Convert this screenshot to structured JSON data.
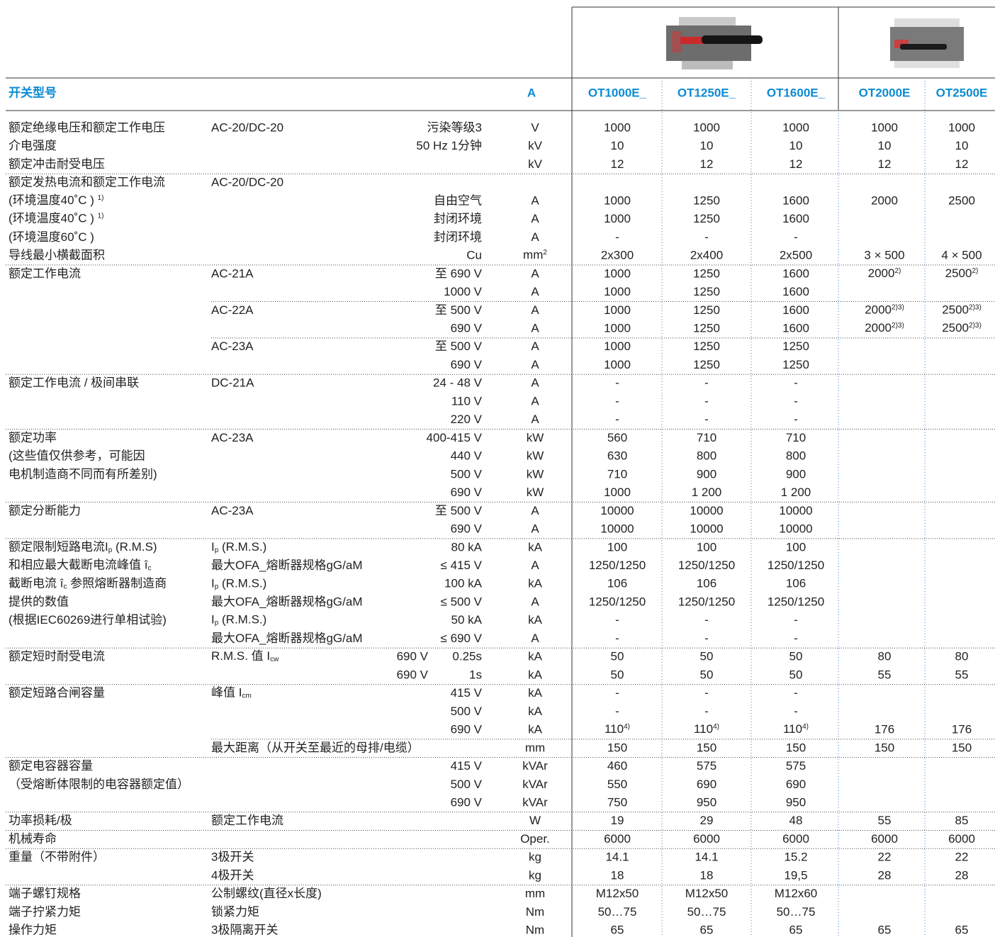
{
  "header": {
    "model_label": "开关型号",
    "unit": "A",
    "models": [
      "OT1000E_",
      "OT1250E_",
      "OT1600E_",
      "OT2000E",
      "OT2500E"
    ]
  },
  "rows": [
    [
      "额定绝缘电压和额定工作电压",
      "AC-20/DC-20",
      "污染等级3",
      "V",
      [
        "1000",
        "1000",
        "1000",
        "1000",
        "1000"
      ]
    ],
    [
      "介电强度",
      null,
      "50 Hz  1分钟",
      "kV",
      [
        "10",
        "10",
        "10",
        "10",
        "10"
      ]
    ],
    [
      "额定冲击耐受电压",
      null,
      null,
      "kV",
      [
        "12",
        "12",
        "12",
        "12",
        "12"
      ]
    ],
    [
      "额定发热电流和额定工作电流",
      "AC-20/DC-20",
      null,
      null,
      null
    ],
    [
      [
        "(环境温度40˚C ) ",
        {
          "sup": "1)"
        }
      ],
      null,
      "自由空气",
      "A",
      [
        "1000",
        "1250",
        "1600",
        "2000",
        "2500"
      ]
    ],
    [
      [
        "(环境温度40˚C ) ",
        {
          "sup": "1)"
        }
      ],
      null,
      "封闭环境",
      "A",
      [
        "1000",
        "1250",
        "1600",
        null,
        null
      ]
    ],
    [
      "(环境温度60˚C )",
      null,
      "封闭环境",
      "A",
      [
        "-",
        "-",
        "-",
        null,
        null
      ]
    ],
    [
      "导线最小横截面积",
      null,
      "Cu",
      [
        "mm",
        {
          "sup": "2"
        }
      ],
      [
        "2x300",
        "2x400",
        "2x500",
        "3 × 500",
        "4 × 500"
      ]
    ],
    [
      "额定工作电流",
      "AC-21A",
      "至 690 V",
      "A",
      [
        "1000",
        "1250",
        "1600",
        [
          "2000",
          {
            "sup": "2)"
          }
        ],
        [
          "2500",
          {
            "sup": "2)"
          }
        ]
      ]
    ],
    [
      null,
      null,
      "1000 V",
      "A",
      [
        "1000",
        "1250",
        "1600",
        null,
        null
      ]
    ],
    [
      null,
      "AC-22A",
      "至 500 V",
      "A",
      [
        "1000",
        "1250",
        "1600",
        [
          "2000",
          {
            "sup": "2)3)"
          }
        ],
        [
          "2500",
          {
            "sup": "2)3)"
          }
        ]
      ]
    ],
    [
      null,
      null,
      "690 V",
      "A",
      [
        "1000",
        "1250",
        "1600",
        [
          "2000",
          {
            "sup": "2)3)"
          }
        ],
        [
          "2500",
          {
            "sup": "2)3)"
          }
        ]
      ]
    ],
    [
      null,
      "AC-23A",
      "至 500 V",
      "A",
      [
        "1000",
        "1250",
        "1250",
        null,
        null
      ]
    ],
    [
      null,
      null,
      "690 V",
      "A",
      [
        "1000",
        "1250",
        "1250",
        null,
        null
      ]
    ],
    [
      "额定工作电流 / 极间串联",
      "DC-21A",
      "24 - 48 V",
      "A",
      [
        "-",
        "-",
        "-",
        null,
        null
      ]
    ],
    [
      null,
      null,
      "110 V",
      "A",
      [
        "-",
        "-",
        "-",
        null,
        null
      ]
    ],
    [
      null,
      null,
      "220 V",
      "A",
      [
        "-",
        "-",
        "-",
        null,
        null
      ]
    ],
    [
      "额定功率",
      "AC-23A",
      "400-415 V",
      "kW",
      [
        "560",
        "710",
        "710",
        null,
        null
      ]
    ],
    [
      "(这些值仅供参考，可能因",
      null,
      "440 V",
      "kW",
      [
        "630",
        "800",
        "800",
        null,
        null
      ]
    ],
    [
      "电机制造商不同而有所差别)",
      null,
      "500 V",
      "kW",
      [
        "710",
        "900",
        "900",
        null,
        null
      ]
    ],
    [
      null,
      null,
      "690 V",
      "kW",
      [
        "1000",
        "1 200",
        "1 200",
        null,
        null
      ]
    ],
    [
      "额定分断能力",
      "AC-23A",
      "至 500 V",
      "A",
      [
        "10000",
        "10000",
        "10000",
        null,
        null
      ]
    ],
    [
      null,
      null,
      "690 V",
      "A",
      [
        "10000",
        "10000",
        "10000",
        null,
        null
      ]
    ],
    [
      [
        "额定限制短路电流I",
        {
          "sub": "p"
        },
        " (R.M.S)"
      ],
      [
        "I",
        {
          "sub": "p"
        },
        " (R.M.S.)"
      ],
      "80 kA",
      "kA",
      [
        "100",
        "100",
        "100",
        null,
        null
      ]
    ],
    [
      [
        "和相应最大截断电流峰值 î",
        {
          "sub": "c"
        }
      ],
      "最大OFA_熔断器规格gG/aM",
      "≤ 415 V",
      "A",
      [
        "1250/1250",
        "1250/1250",
        "1250/1250",
        null,
        null
      ]
    ],
    [
      [
        "截断电流 î",
        {
          "sub": "c"
        },
        " 参照熔断器制造商"
      ],
      [
        "I",
        {
          "sub": "p"
        },
        " (R.M.S.)"
      ],
      "100 kA",
      "kA",
      [
        "106",
        "106",
        "106",
        null,
        null
      ]
    ],
    [
      "提供的数值",
      "最大OFA_熔断器规格gG/aM",
      "≤ 500 V",
      "A",
      [
        "1250/1250",
        "1250/1250",
        "1250/1250",
        null,
        null
      ]
    ],
    [
      "(根据IEC60269进行单相试验)",
      [
        "I",
        {
          "sub": "p"
        },
        " (R.M.S.)"
      ],
      "50 kA",
      "kA",
      [
        "-",
        "-",
        "-",
        null,
        null
      ]
    ],
    [
      null,
      "最大OFA_熔断器规格gG/aM",
      "≤ 690 V",
      "A",
      [
        "-",
        "-",
        "-",
        null,
        null
      ]
    ],
    [
      "额定短时耐受电流",
      [
        "R.M.S. 值   I",
        {
          "sub": "cw"
        }
      ],
      {
        "left": "690 V",
        "right": "0.25s"
      },
      "kA",
      [
        "50",
        "50",
        "50",
        "80",
        "80"
      ]
    ],
    [
      null,
      null,
      {
        "left": "690 V",
        "right": "1s"
      },
      "kA",
      [
        "50",
        "50",
        "50",
        "55",
        "55"
      ]
    ],
    [
      "额定短路合闸容量",
      [
        "峰值   I",
        {
          "sub": "cm"
        }
      ],
      "415 V",
      "kA",
      [
        "-",
        "-",
        "-",
        null,
        null
      ]
    ],
    [
      null,
      null,
      "500 V",
      "kA",
      [
        "-",
        "-",
        "-",
        null,
        null
      ]
    ],
    [
      null,
      null,
      "690 V",
      "kA",
      [
        [
          "110",
          {
            "sup": "4)"
          }
        ],
        [
          "110",
          {
            "sup": "4)"
          }
        ],
        [
          "110",
          {
            "sup": "4)"
          }
        ],
        "176",
        "176"
      ]
    ],
    [
      null,
      "最大距离（从开关至最近的母排/电缆）",
      null,
      "mm",
      [
        "150",
        "150",
        "150",
        "150",
        "150"
      ]
    ],
    [
      "额定电容器容量",
      null,
      "415 V",
      "kVAr",
      [
        "460",
        "575",
        "575",
        null,
        null
      ]
    ],
    [
      "（受熔断体限制的电容器额定值）",
      null,
      "500 V",
      "kVAr",
      [
        "550",
        "690",
        "690",
        null,
        null
      ]
    ],
    [
      null,
      null,
      "690 V",
      "kVAr",
      [
        "750",
        "950",
        "950",
        null,
        null
      ]
    ],
    [
      "功率损耗/极",
      "额定工作电流",
      null,
      "W",
      [
        "19",
        "29",
        "48",
        "55",
        "85"
      ]
    ],
    [
      "机械寿命",
      null,
      null,
      "Oper.",
      [
        "6000",
        "6000",
        "6000",
        "6000",
        "6000"
      ]
    ],
    [
      "重量（不带附件）",
      "3极开关",
      null,
      "kg",
      [
        "14.1",
        "14.1",
        "15.2",
        "22",
        "22"
      ]
    ],
    [
      null,
      "4极开关",
      null,
      "kg",
      [
        "18",
        "18",
        "19,5",
        "28",
        "28"
      ]
    ],
    [
      "端子螺钉规格",
      "公制螺纹(直径x长度)",
      null,
      "mm",
      [
        "M12x50",
        "M12x50",
        "M12x60",
        null,
        null
      ]
    ],
    [
      "端子拧紧力矩",
      "锁紧力矩",
      null,
      "Nm",
      [
        "50…75",
        "50…75",
        "50…75",
        null,
        null
      ]
    ],
    [
      "操作力矩",
      "3极隔离开关",
      null,
      "Nm",
      [
        "65",
        "65",
        "65",
        "65",
        "65"
      ]
    ]
  ]
}
